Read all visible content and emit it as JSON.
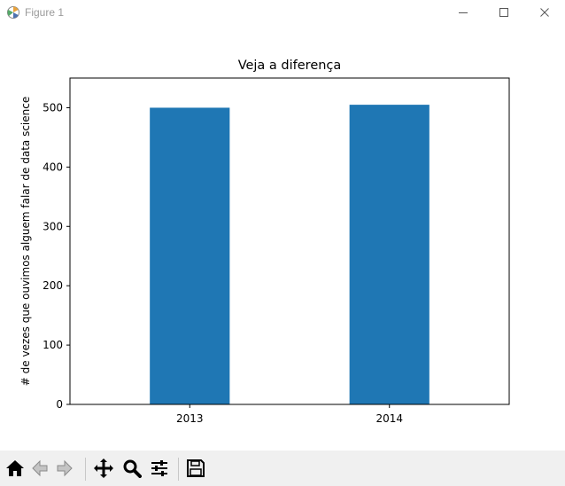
{
  "window": {
    "title": "Figure 1",
    "icons": [
      "matplotlib-logo-icon",
      "minimize-icon",
      "maximize-icon",
      "close-icon"
    ]
  },
  "toolbar": {
    "buttons": [
      "home-icon",
      "back-arrow-icon",
      "forward-arrow-icon",
      "pan-icon",
      "zoom-icon",
      "configure-subplots-icon",
      "save-icon"
    ]
  },
  "chart_data": {
    "type": "bar",
    "title": "Veja a diferença",
    "xlabel": "",
    "ylabel": "# de vezes que ouvimos alguem falar de data science",
    "categories": [
      "2013",
      "2014"
    ],
    "values": [
      500,
      505
    ],
    "ylim": [
      0,
      550
    ],
    "yticks": [
      0,
      100,
      200,
      300,
      400,
      500
    ],
    "grid": false,
    "colors": {
      "bar": "#1f77b4"
    }
  }
}
